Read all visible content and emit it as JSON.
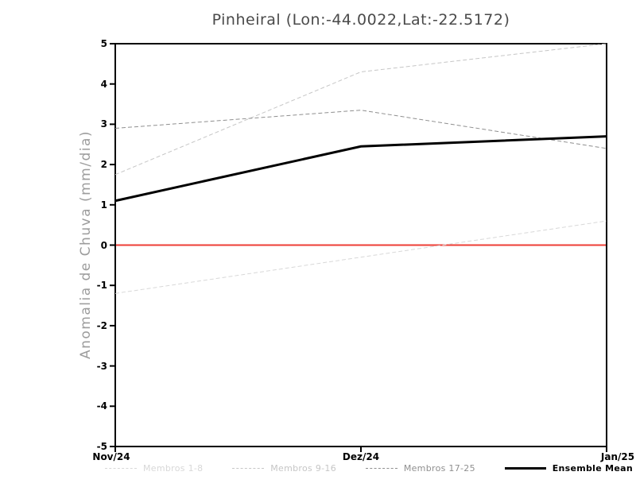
{
  "chart_data": {
    "type": "line",
    "title": "Pinheiral (Lon:-44.0022,Lat:-22.5172)",
    "ylabel": "Anomalia de Chuva (mm/dia)",
    "xlabel": "",
    "categories": [
      "Nov/24",
      "Dez/24",
      "Jan/25"
    ],
    "ylim": [
      -5,
      5
    ],
    "y_ticks": [
      5,
      4,
      3,
      2,
      1,
      0,
      -1,
      -2,
      -3,
      -4,
      -5
    ],
    "grid": false,
    "legend_position": "bottom",
    "series": [
      {
        "name": "Membros 1-8",
        "color": "#d8d8d8",
        "style": "dashed",
        "width": 1,
        "values": [
          -1.2,
          -0.3,
          0.6
        ]
      },
      {
        "name": "Membros 9-16",
        "color": "#c6c6c6",
        "style": "dashed",
        "width": 1,
        "values": [
          1.75,
          4.3,
          5.0
        ]
      },
      {
        "name": "Membros 17-25",
        "color": "#8f8f8f",
        "style": "dashed",
        "width": 1,
        "values": [
          2.9,
          3.35,
          2.4
        ]
      },
      {
        "name": "Ensemble Mean",
        "color": "#000000",
        "style": "solid",
        "width": 3,
        "values": [
          1.1,
          2.45,
          2.7
        ]
      }
    ],
    "reference_line": {
      "y": 0,
      "color": "#ee3d35"
    },
    "axis_color": "#000000"
  }
}
